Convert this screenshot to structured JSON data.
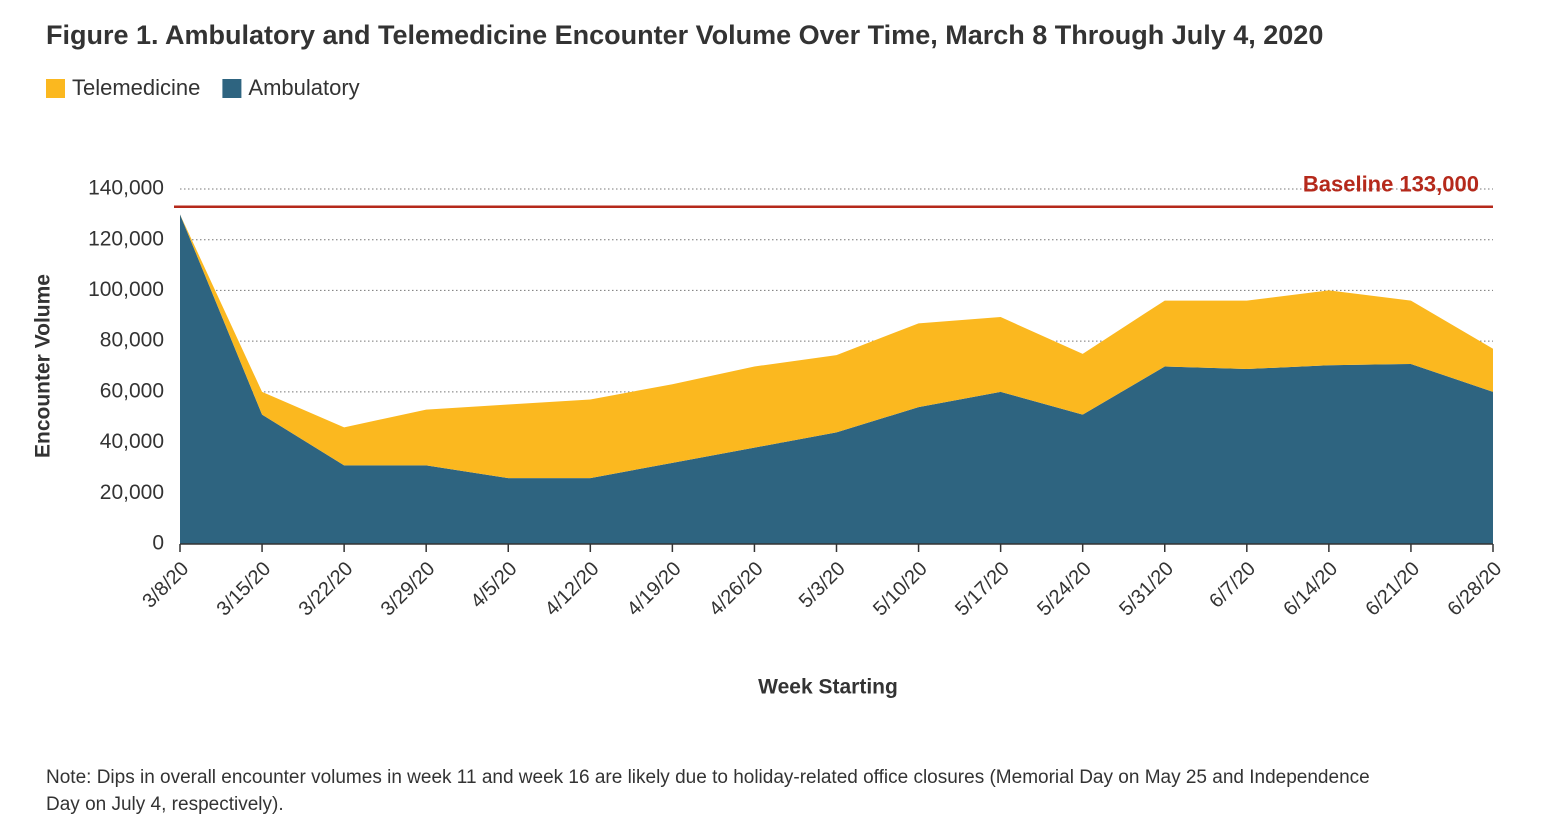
{
  "chart_data": {
    "type": "stacked-area",
    "title": "Figure 1. Ambulatory and Telemedicine Encounter Volume Over Time, March 8 Through July 4, 2020",
    "x_label": "Week Starting",
    "y_label": "Encounter Volume",
    "categories": [
      "3/8/20",
      "3/15/20",
      "3/22/20",
      "3/29/20",
      "4/5/20",
      "4/12/20",
      "4/19/20",
      "4/26/20",
      "5/3/20",
      "5/10/20",
      "5/17/20",
      "5/24/20",
      "5/31/20",
      "6/7/20",
      "6/14/20",
      "6/21/20",
      "6/28/20"
    ],
    "series": [
      {
        "name": "Ambulatory",
        "color": "#2e6480",
        "values": [
          130000,
          51000,
          31000,
          31000,
          26000,
          26000,
          32000,
          38000,
          44000,
          54000,
          60000,
          51000,
          70000,
          69000,
          70500,
          71000,
          60000
        ]
      },
      {
        "name": "Telemedicine",
        "color": "#fbb81f",
        "values": [
          0,
          9000,
          15000,
          22000,
          29000,
          31000,
          31000,
          32000,
          30500,
          33000,
          29500,
          24000,
          26000,
          27000,
          29500,
          25000,
          17000
        ]
      }
    ],
    "legend_order": [
      1,
      0
    ],
    "ylim": [
      0,
      140000
    ],
    "yticks": [
      0,
      {
        "value": 20000,
        "label": "20,000"
      },
      {
        "value": 40000,
        "label": "40,000"
      },
      {
        "value": 60000,
        "label": "60,000"
      },
      {
        "value": 80000,
        "label": "80,000"
      },
      {
        "value": 100000,
        "label": "100,000"
      },
      {
        "value": 120000,
        "label": "120,000"
      },
      {
        "value": 140000,
        "label": "140,000"
      }
    ],
    "grid": true,
    "baseline": {
      "value": 133000,
      "label": "Baseline 133,000",
      "color": "#b5291b"
    },
    "note": "Note: Dips in overall encounter volumes in week 11 and week 16 are likely due to holiday-related office closures (Memorial Day on May 25 and Independence Day on July 4, respectively)."
  }
}
